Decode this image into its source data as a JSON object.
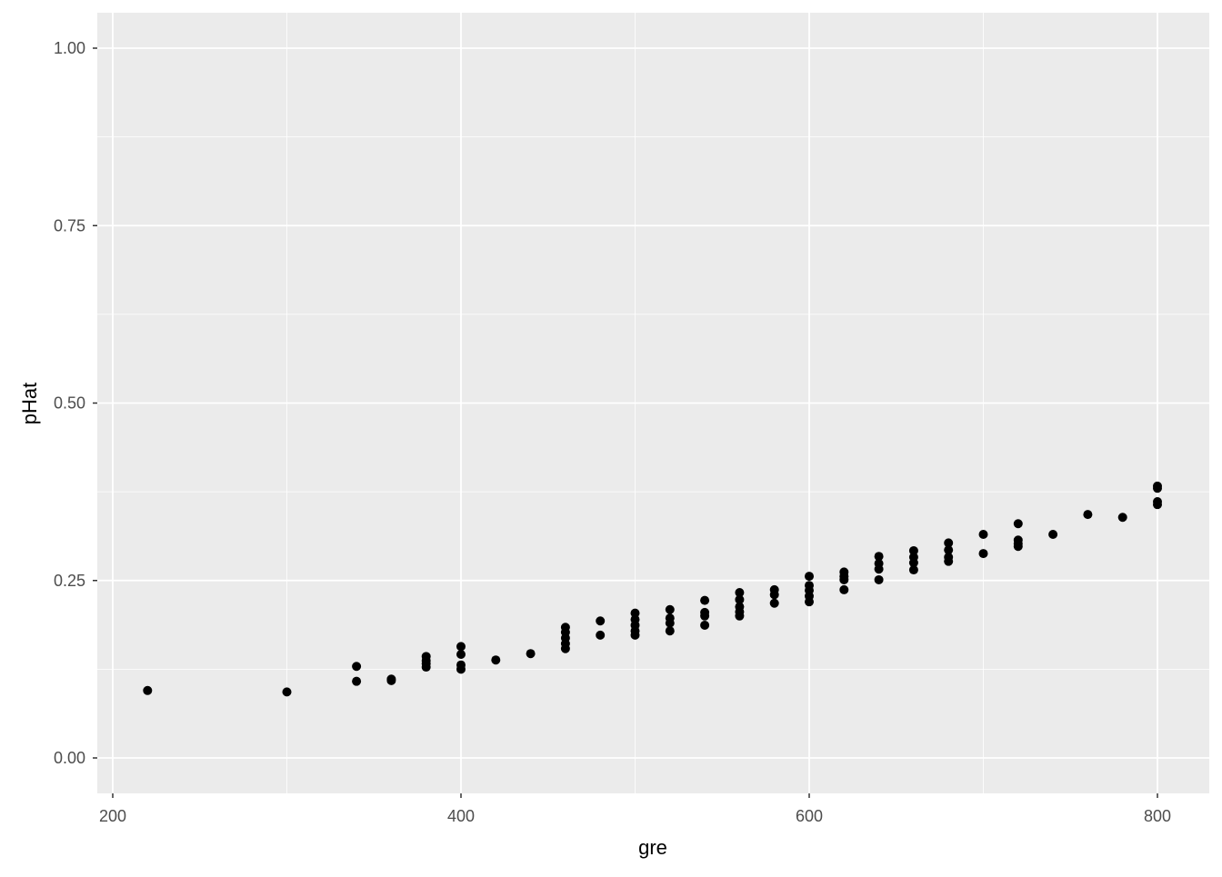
{
  "chart_data": {
    "type": "scatter",
    "title": "",
    "xlabel": "gre",
    "ylabel": "pHat",
    "xlim": [
      185,
      820
    ],
    "ylim": [
      -0.05,
      1.05
    ],
    "x_ticks": [
      200,
      400,
      600,
      800
    ],
    "x_tick_labels": [
      "200",
      "400",
      "600",
      "800"
    ],
    "y_ticks": [
      0,
      0.25,
      0.5,
      0.75,
      1.0
    ],
    "y_tick_labels": [
      "0.00",
      "0.25",
      "0.50",
      "0.75",
      "1.00"
    ],
    "grid": true,
    "background": "#EBEBEB",
    "point_color": "#000000",
    "points": [
      [
        220,
        0.095
      ],
      [
        300,
        0.093
      ],
      [
        340,
        0.129
      ],
      [
        340,
        0.108
      ],
      [
        360,
        0.109
      ],
      [
        360,
        0.111
      ],
      [
        380,
        0.143
      ],
      [
        380,
        0.137
      ],
      [
        380,
        0.133
      ],
      [
        380,
        0.128
      ],
      [
        400,
        0.157
      ],
      [
        400,
        0.146
      ],
      [
        400,
        0.131
      ],
      [
        400,
        0.125
      ],
      [
        420,
        0.138
      ],
      [
        440,
        0.147
      ],
      [
        460,
        0.184
      ],
      [
        460,
        0.177
      ],
      [
        460,
        0.169
      ],
      [
        460,
        0.161
      ],
      [
        460,
        0.154
      ],
      [
        480,
        0.193
      ],
      [
        480,
        0.173
      ],
      [
        500,
        0.204
      ],
      [
        500,
        0.195
      ],
      [
        500,
        0.187
      ],
      [
        500,
        0.179
      ],
      [
        500,
        0.173
      ],
      [
        520,
        0.209
      ],
      [
        520,
        0.197
      ],
      [
        520,
        0.19
      ],
      [
        520,
        0.179
      ],
      [
        540,
        0.222
      ],
      [
        540,
        0.205
      ],
      [
        540,
        0.2
      ],
      [
        540,
        0.187
      ],
      [
        560,
        0.233
      ],
      [
        560,
        0.223
      ],
      [
        560,
        0.213
      ],
      [
        560,
        0.206
      ],
      [
        560,
        0.2
      ],
      [
        580,
        0.237
      ],
      [
        580,
        0.23
      ],
      [
        580,
        0.218
      ],
      [
        600,
        0.256
      ],
      [
        600,
        0.243
      ],
      [
        600,
        0.236
      ],
      [
        600,
        0.228
      ],
      [
        600,
        0.22
      ],
      [
        620,
        0.262
      ],
      [
        620,
        0.256
      ],
      [
        620,
        0.251
      ],
      [
        620,
        0.237
      ],
      [
        640,
        0.284
      ],
      [
        640,
        0.274
      ],
      [
        640,
        0.266
      ],
      [
        640,
        0.251
      ],
      [
        660,
        0.292
      ],
      [
        660,
        0.283
      ],
      [
        660,
        0.275
      ],
      [
        660,
        0.265
      ],
      [
        680,
        0.303
      ],
      [
        680,
        0.293
      ],
      [
        680,
        0.283
      ],
      [
        680,
        0.277
      ],
      [
        700,
        0.315
      ],
      [
        700,
        0.288
      ],
      [
        720,
        0.33
      ],
      [
        720,
        0.307
      ],
      [
        720,
        0.302
      ],
      [
        720,
        0.298
      ],
      [
        740,
        0.315
      ],
      [
        760,
        0.343
      ],
      [
        780,
        0.339
      ],
      [
        800,
        0.383
      ],
      [
        800,
        0.38
      ],
      [
        800,
        0.361
      ],
      [
        800,
        0.357
      ]
    ]
  }
}
